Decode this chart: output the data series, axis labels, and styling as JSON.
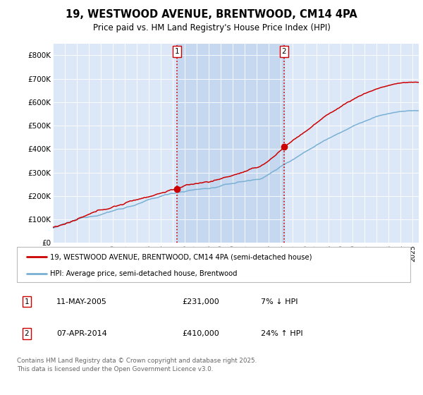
{
  "title": "19, WESTWOOD AVENUE, BRENTWOOD, CM14 4PA",
  "subtitle": "Price paid vs. HM Land Registry's House Price Index (HPI)",
  "plot_bg_color": "#dce8f8",
  "shade_color": "#c5d8f0",
  "red_color": "#cc0000",
  "blue_color": "#7ab0d4",
  "vline_color": "#cc0000",
  "annotation1": {
    "label": "1",
    "date": "11-MAY-2005",
    "price": "£231,000",
    "hpi": "7% ↓ HPI"
  },
  "annotation2": {
    "label": "2",
    "date": "07-APR-2014",
    "price": "£410,000",
    "hpi": "24% ↑ HPI"
  },
  "legend1": "19, WESTWOOD AVENUE, BRENTWOOD, CM14 4PA (semi-detached house)",
  "legend2": "HPI: Average price, semi-detached house, Brentwood",
  "footer": "Contains HM Land Registry data © Crown copyright and database right 2025.\nThis data is licensed under the Open Government Licence v3.0.",
  "ylabel_ticks": [
    0,
    100000,
    200000,
    300000,
    400000,
    500000,
    600000,
    700000,
    800000
  ],
  "ylabel_labels": [
    "£0",
    "£100K",
    "£200K",
    "£300K",
    "£400K",
    "£500K",
    "£600K",
    "£700K",
    "£800K"
  ],
  "ylim": [
    0,
    850000
  ],
  "sale1_year": 2005.36,
  "sale1_price": 231000,
  "sale2_year": 2014.27,
  "sale2_price": 410000,
  "start_year": 1995,
  "end_year": 2025
}
